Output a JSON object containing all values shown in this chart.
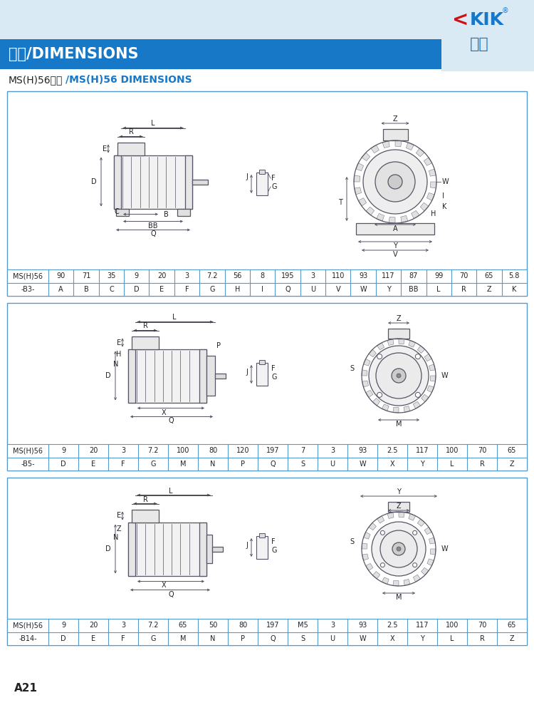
{
  "title_bar_text": "尺寸/DIMENSIONS",
  "page_label": "A21",
  "header_bg": "#daeaf5",
  "title_bar_bg": "#1878c8",
  "title_bar_text_color": "#ffffff",
  "border_color": "#5599cc",
  "table_line_color": "#5599cc",
  "draw_color": "#555566",
  "table1_row1": [
    "MS(H)56",
    "90",
    "71",
    "35",
    "9",
    "20",
    "3",
    "7.2",
    "56",
    "8",
    "195",
    "3",
    "110",
    "93",
    "117",
    "87",
    "99",
    "70",
    "65",
    "5.8"
  ],
  "table1_row2": [
    "-B3-",
    "A",
    "B",
    "C",
    "D",
    "E",
    "F",
    "G",
    "H",
    "I",
    "Q",
    "U",
    "V",
    "W",
    "Y",
    "BB",
    "L",
    "R",
    "Z",
    "K"
  ],
  "table2_row1": [
    "MS(H)56",
    "9",
    "20",
    "3",
    "7.2",
    "100",
    "80",
    "120",
    "197",
    "7",
    "3",
    "93",
    "2.5",
    "117",
    "100",
    "70",
    "65"
  ],
  "table2_row2": [
    "-B5-",
    "D",
    "E",
    "F",
    "G",
    "M",
    "N",
    "P",
    "Q",
    "S",
    "U",
    "W",
    "X",
    "Y",
    "L",
    "R",
    "Z"
  ],
  "table3_row1": [
    "MS(H)56",
    "9",
    "20",
    "3",
    "7.2",
    "65",
    "50",
    "80",
    "197",
    "M5",
    "3",
    "93",
    "2.5",
    "117",
    "100",
    "70",
    "65"
  ],
  "table3_row2": [
    "-B14-",
    "D",
    "E",
    "F",
    "G",
    "M",
    "N",
    "P",
    "Q",
    "S",
    "U",
    "W",
    "X",
    "Y",
    "L",
    "R",
    "Z"
  ]
}
